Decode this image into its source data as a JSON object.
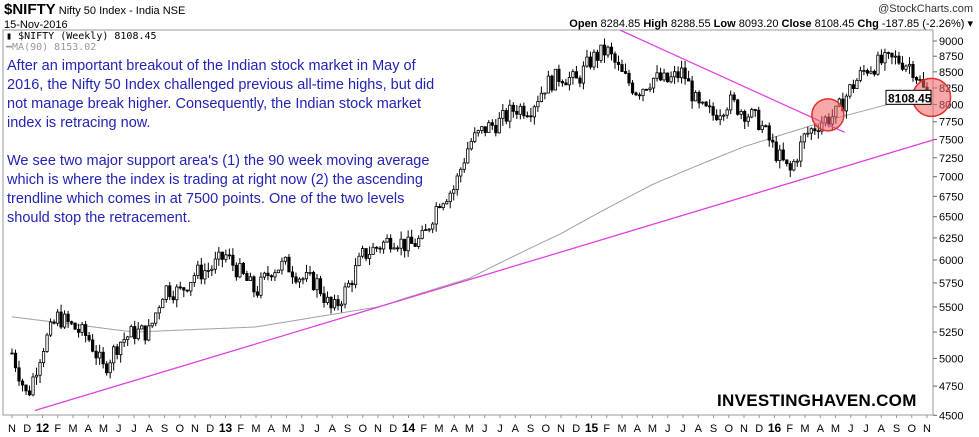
{
  "header": {
    "symbol": "$NIFTY",
    "name": "Nifty 50 Index - India NSE",
    "source": "@StockCharts.com",
    "date": "15-Nov-2016",
    "open_label": "Open",
    "open": "8284.85",
    "high_label": "High",
    "high": "8288.55",
    "low_label": "Low",
    "low": "8093.20",
    "close_label": "Close",
    "close": "8108.45",
    "chg_label": "Chg",
    "chg": "-187.85 (-2.26%)",
    "chg_icon": "triangle-down-icon"
  },
  "legend": {
    "series": "$NIFTY (Weekly) 8108.45",
    "ma": "MA(90) 8153.02"
  },
  "annotation": {
    "p1": "After an important breakout of the Indian stock market in May of 2016, the Nifty 50 Index challenged previous all-time highs, but did not manage break higher. Consequently, the Indian stock market index is retracing now.",
    "p2": "We see two major support area's (1) the 90 week moving average which is where the index is trading at right now (2) the ascending trendline which comes in at 7500 points. One of the two levels should stop the retracement."
  },
  "watermark": "INVESTINGHAVEN.COM",
  "colors": {
    "trendline": "#e040e0",
    "ma": "#a0a0a0",
    "circle": "#f06060",
    "text": "#2323b4"
  },
  "chart_data": {
    "type": "candlestick",
    "period": "weekly",
    "scale": "log",
    "ylim": [
      4500,
      9000
    ],
    "y_ticks": [
      "9000",
      "8750",
      "8500",
      "8250",
      "8000",
      "7750",
      "7500",
      "7250",
      "7000",
      "6750",
      "6500",
      "6250",
      "6000",
      "5750",
      "5500",
      "5250",
      "5000",
      "4750",
      "4500"
    ],
    "x_ticks": [
      "N",
      "D",
      "12",
      "F",
      "M",
      "A",
      "M",
      "J",
      "J",
      "A",
      "S",
      "O",
      "N",
      "D",
      "13",
      "F",
      "M",
      "A",
      "M",
      "J",
      "J",
      "A",
      "S",
      "O",
      "N",
      "D",
      "14",
      "F",
      "M",
      "A",
      "M",
      "J",
      "J",
      "A",
      "S",
      "O",
      "N",
      "D",
      "15",
      "F",
      "M",
      "A",
      "M",
      "J",
      "J",
      "A",
      "S",
      "O",
      "N",
      "D",
      "16",
      "F",
      "M",
      "A",
      "M",
      "J",
      "J",
      "A",
      "S",
      "O",
      "N"
    ],
    "month_start": "Nov 2011",
    "monthly_close": [
      5050,
      4650,
      5100,
      5400,
      5300,
      5200,
      4900,
      5150,
      5250,
      5250,
      5700,
      5650,
      5850,
      5900,
      6050,
      5850,
      5650,
      5900,
      5950,
      5800,
      5750,
      5450,
      5700,
      6050,
      6150,
      6250,
      6150,
      6250,
      6700,
      6850,
      7450,
      7650,
      7750,
      7950,
      7950,
      8300,
      8450,
      8350,
      8700,
      8850,
      8450,
      8200,
      8400,
      8350,
      8500,
      7950,
      7850,
      8050,
      7900,
      7750,
      7350,
      7050,
      7550,
      7750,
      7850,
      8250,
      8550,
      8650,
      8700,
      8600,
      8108.45
    ],
    "ma90": [
      [
        0,
        5400
      ],
      [
        8,
        5250
      ],
      [
        16,
        5300
      ],
      [
        24,
        5500
      ],
      [
        30,
        5800
      ],
      [
        36,
        6300
      ],
      [
        42,
        6900
      ],
      [
        48,
        7400
      ],
      [
        54,
        7800
      ],
      [
        60,
        8153.02
      ]
    ],
    "last_price_label": "8108.45",
    "trendlines": [
      {
        "name": "ascending",
        "from": [
          1.5,
          4540
        ],
        "to": [
          60.5,
          7500
        ]
      },
      {
        "name": "descending",
        "from": [
          39.9,
          9180
        ],
        "to": [
          54.6,
          7600
        ]
      }
    ],
    "highlights": [
      {
        "month": 53.5,
        "price": 7850
      },
      {
        "month": 60.3,
        "price": 8108
      }
    ]
  }
}
